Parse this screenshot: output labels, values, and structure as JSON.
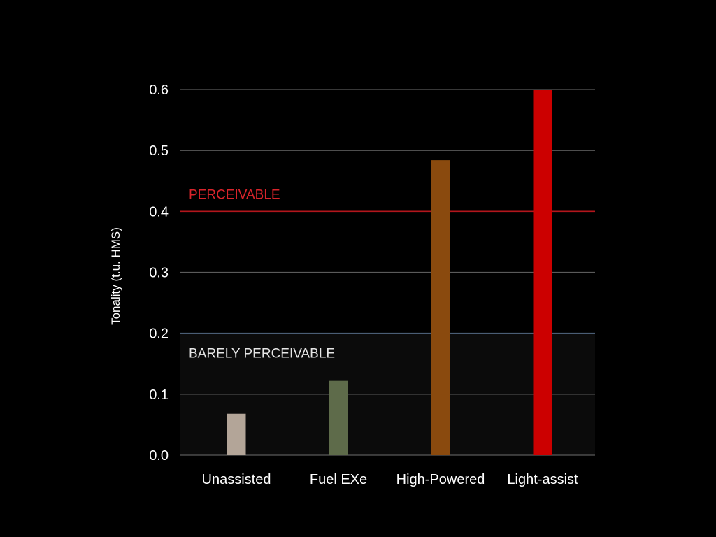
{
  "chart_data": {
    "type": "bar",
    "ylabel": "Tonality (t.u. HMS)",
    "xlabel": "",
    "ylim": [
      0,
      0.6
    ],
    "yticks": [
      "0.0",
      "0.1",
      "0.2",
      "0.3",
      "0.4",
      "0.5",
      "0.6"
    ],
    "grid": true,
    "categories": [
      "Unassisted",
      "Fuel EXe",
      "High-Powered",
      "Light-assist"
    ],
    "values": [
      0.068,
      0.122,
      0.484,
      0.6
    ],
    "colors": [
      "#b3a598",
      "#5e6b4a",
      "#8a4a0e",
      "#cc0000"
    ],
    "thresholds": [
      {
        "label": "PERCEIVABLE",
        "value": 0.4,
        "color": "#b3161c",
        "text_color": "#d9242b"
      },
      {
        "label": "BARELY PERCEIVABLE",
        "value": 0.2,
        "color": "#4a5d75",
        "text_color": "#e6e6e6"
      }
    ]
  }
}
